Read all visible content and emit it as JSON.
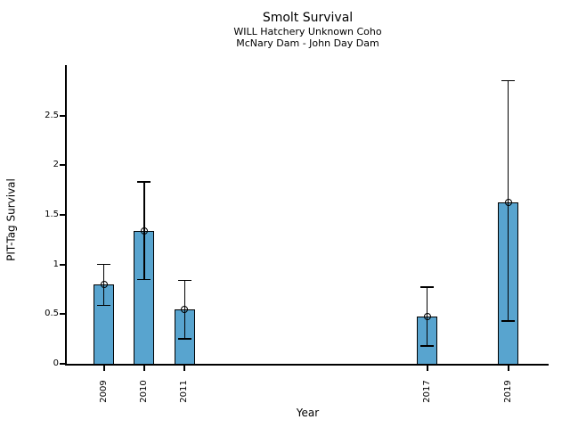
{
  "chart_data": {
    "type": "bar",
    "title": "Smolt Survival",
    "subtitle1": "WILL Hatchery Unknown Coho",
    "subtitle2": "McNary Dam - John Day Dam",
    "xlabel": "Year",
    "ylabel": "PIT-Tag Survival",
    "categories": [
      "2009",
      "2010",
      "2011",
      "2017",
      "2019"
    ],
    "x_years": [
      2009,
      2010,
      2011,
      2017,
      2019
    ],
    "values": [
      0.8,
      1.34,
      0.55,
      0.48,
      1.63
    ],
    "error_low": [
      0.59,
      0.85,
      0.25,
      0.18,
      0.43
    ],
    "error_high": [
      1.0,
      1.83,
      0.84,
      0.77,
      2.85
    ],
    "ytick_labels": [
      "0",
      "0.5",
      "1",
      "1.5",
      "2",
      "2.5"
    ],
    "ytick_values": [
      0,
      0.5,
      1,
      1.5,
      2,
      2.5
    ],
    "ylim": [
      0,
      3.0
    ],
    "xlim": [
      2008.1,
      2019.9
    ],
    "bar_color": "#58A4CF",
    "bar_edge_color": "#000000",
    "error_color": "#000000",
    "marker": "open-circle",
    "grid": "off",
    "legend": "none"
  }
}
